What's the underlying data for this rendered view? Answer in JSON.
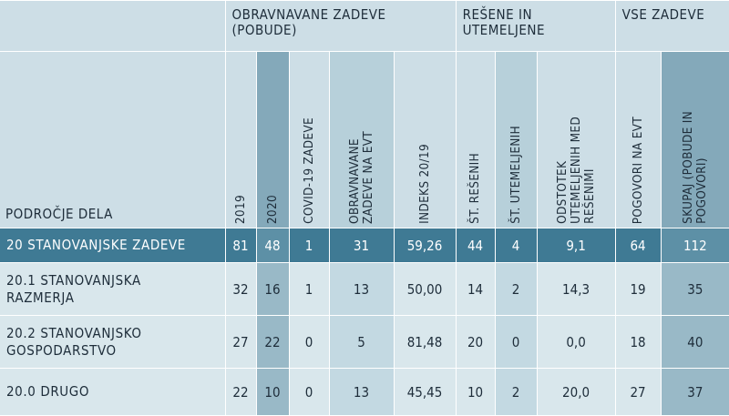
{
  "groups": {
    "handled": "OBRAVNAVANE ZADEVE (POBUDE)",
    "resolved": "REŠENE IN UTEMELJENE",
    "all": "VSE ZADEVE"
  },
  "area_header": "PODROČJE DELA",
  "columns": {
    "y2019": "2019",
    "y2020": "2020",
    "covid": "COVID-19 ZADEVE",
    "handled_evt_1": "OBRAVNAVANE",
    "handled_evt_2": "ZADEVE NA EVT",
    "index": "INDEKS 20/19",
    "resolved_count": "ŠT. REŠENIH",
    "justified_count": "ŠT. UTEMELJENIH",
    "pct_1": "ODSTOTEK",
    "pct_2": "UTEMELJENIH MED",
    "pct_3": "REŠENIMI",
    "talks": "POGOVORI NA EVT",
    "total_1": "SKUPAJ (POBUDE IN",
    "total_2": "POGOVORI)"
  },
  "rows": [
    {
      "area_1": "20  STANOVANJSKE ZADEVE",
      "area_2": "",
      "y2019": "81",
      "y2020": "48",
      "covid": "1",
      "evt": "31",
      "index": "59,26",
      "resolved": "44",
      "justified": "4",
      "pct": "9,1",
      "talks": "64",
      "total": "112"
    },
    {
      "area_1": "20.1  STANOVANJSKA",
      "area_2": "RAZMERJA",
      "y2019": "32",
      "y2020": "16",
      "covid": "1",
      "evt": "13",
      "index": "50,00",
      "resolved": "14",
      "justified": "2",
      "pct": "14,3",
      "talks": "19",
      "total": "35"
    },
    {
      "area_1": "20.2  STANOVANJSKO",
      "area_2": "GOSPODARSTVO",
      "y2019": "27",
      "y2020": "22",
      "covid": "0",
      "evt": "5",
      "index": "81,48",
      "resolved": "20",
      "justified": "0",
      "pct": "0,0",
      "talks": "18",
      "total": "40"
    },
    {
      "area_1": "20.0  DRUGO",
      "area_2": "",
      "y2019": "22",
      "y2020": "10",
      "covid": "0",
      "evt": "13",
      "index": "45,45",
      "resolved": "10",
      "justified": "2",
      "pct": "20,0",
      "talks": "27",
      "total": "37"
    }
  ]
}
